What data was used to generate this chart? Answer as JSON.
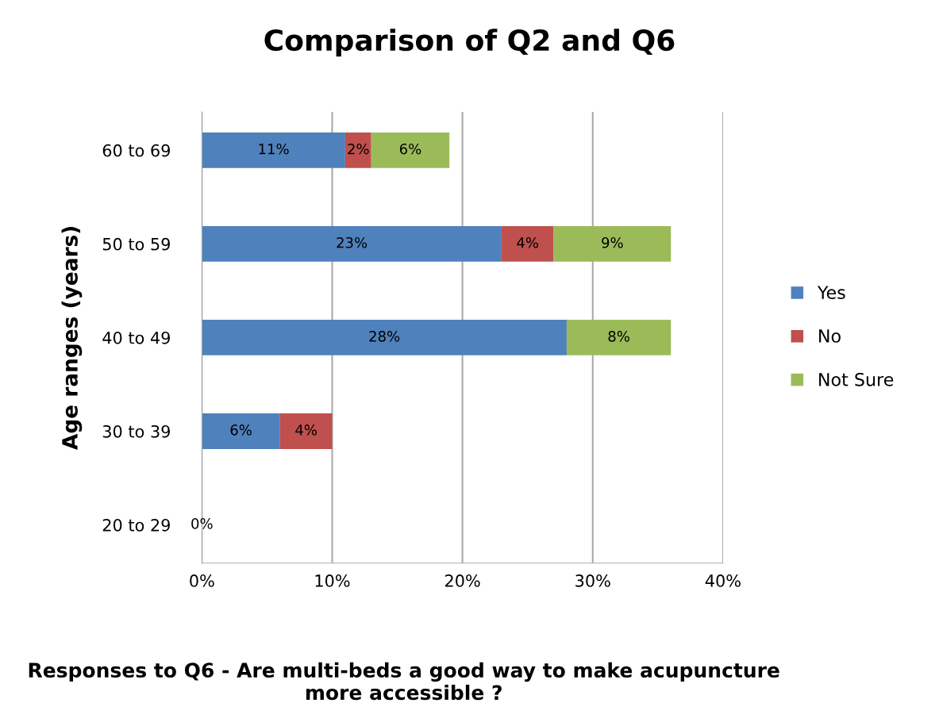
{
  "chart_data": {
    "type": "bar",
    "orientation": "horizontal",
    "stacked": true,
    "title": "Comparison of Q2 and Q6",
    "xlabel": "Responses to Q6 - Are multi-beds a good way to make acupuncture more accessible ?",
    "ylabel": "Age ranges (years)",
    "categories": [
      "60 to 69",
      "50 to 59",
      "40 to 49",
      "30 to 39",
      "20 to 29"
    ],
    "series": [
      {
        "name": "Yes",
        "color": "#4f81bd",
        "values": [
          11,
          23,
          28,
          6,
          null
        ],
        "value_labels": [
          "11%",
          "23%",
          "28%",
          "6%",
          null
        ]
      },
      {
        "name": "No",
        "color": "#c0504d",
        "values": [
          2,
          4,
          null,
          4,
          null
        ],
        "value_labels": [
          "2%",
          "4%",
          null,
          "4%",
          null
        ]
      },
      {
        "name": "Not Sure",
        "color": "#9bbb59",
        "values": [
          6,
          9,
          8,
          null,
          0
        ],
        "value_labels": [
          "6%",
          "9%",
          "8%",
          null,
          "0%"
        ]
      }
    ],
    "xlim": [
      0,
      40
    ],
    "xticks": [
      {
        "value": 0,
        "label": "0%"
      },
      {
        "value": 10,
        "label": "10%"
      },
      {
        "value": 20,
        "label": "20%"
      },
      {
        "value": 30,
        "label": "30%"
      },
      {
        "value": 40,
        "label": "40%"
      }
    ],
    "grid": "x",
    "legend": "right"
  }
}
